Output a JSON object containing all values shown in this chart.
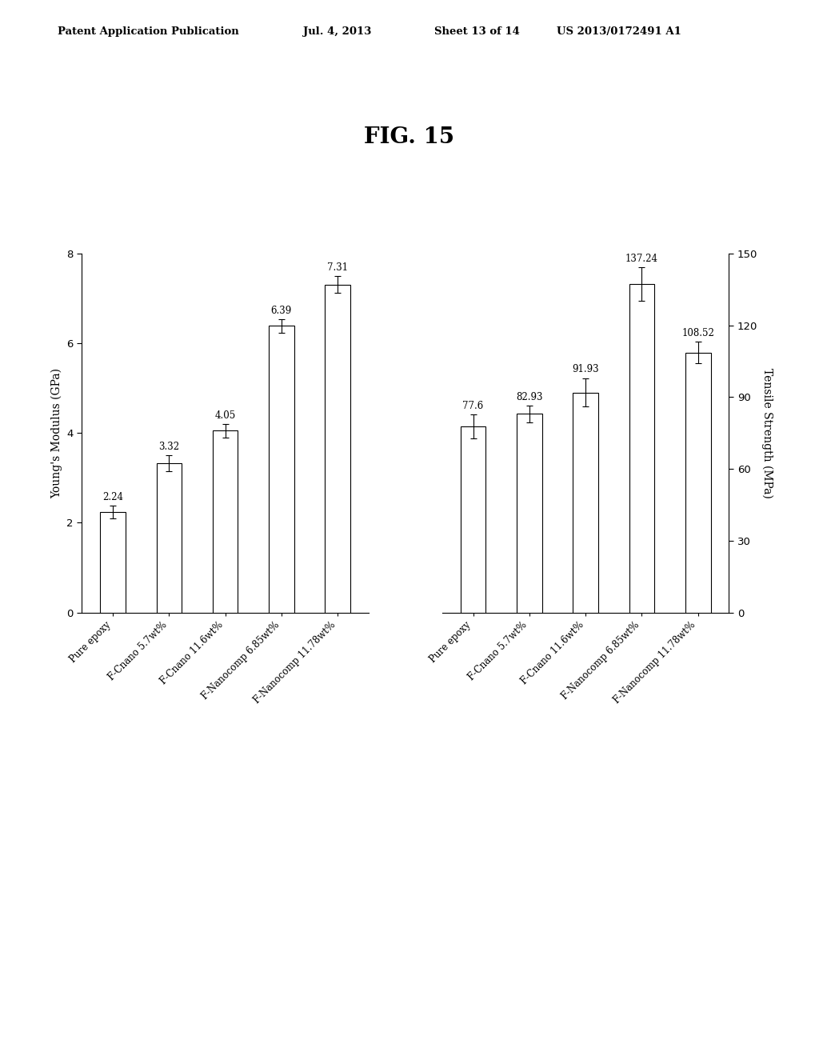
{
  "title": "FIG. 15",
  "patent_header": "Patent Application Publication",
  "patent_date": "Jul. 4, 2013",
  "patent_sheet": "Sheet 13 of 14",
  "patent_num": "US 2013/0172491 A1",
  "left_ylabel": "Young's Modulus (GPa)",
  "right_ylabel": "Tensile Strength (MPa)",
  "categories": [
    "Pure epoxy",
    "F-Cnano 5.7wt%",
    "F-Cnano 11.6wt%",
    "F-Nanocomp 6.85wt%",
    "F-Nanocomp 11.78wt%"
  ],
  "modulus_values": [
    2.24,
    3.32,
    4.05,
    6.39,
    7.31
  ],
  "modulus_errors": [
    0.15,
    0.18,
    0.15,
    0.15,
    0.18
  ],
  "tensile_values": [
    77.6,
    82.93,
    91.93,
    137.24,
    108.52
  ],
  "tensile_errors": [
    5.0,
    3.5,
    6.0,
    7.0,
    4.5
  ],
  "modulus_ylim": [
    0,
    8
  ],
  "modulus_yticks": [
    0,
    2,
    4,
    6,
    8
  ],
  "tensile_ylim": [
    0,
    150
  ],
  "tensile_yticks": [
    0,
    30,
    60,
    90,
    120,
    150
  ],
  "bar_color": "#ffffff",
  "bar_edge_color": "#000000",
  "background_color": "#ffffff",
  "bar_width": 0.45
}
